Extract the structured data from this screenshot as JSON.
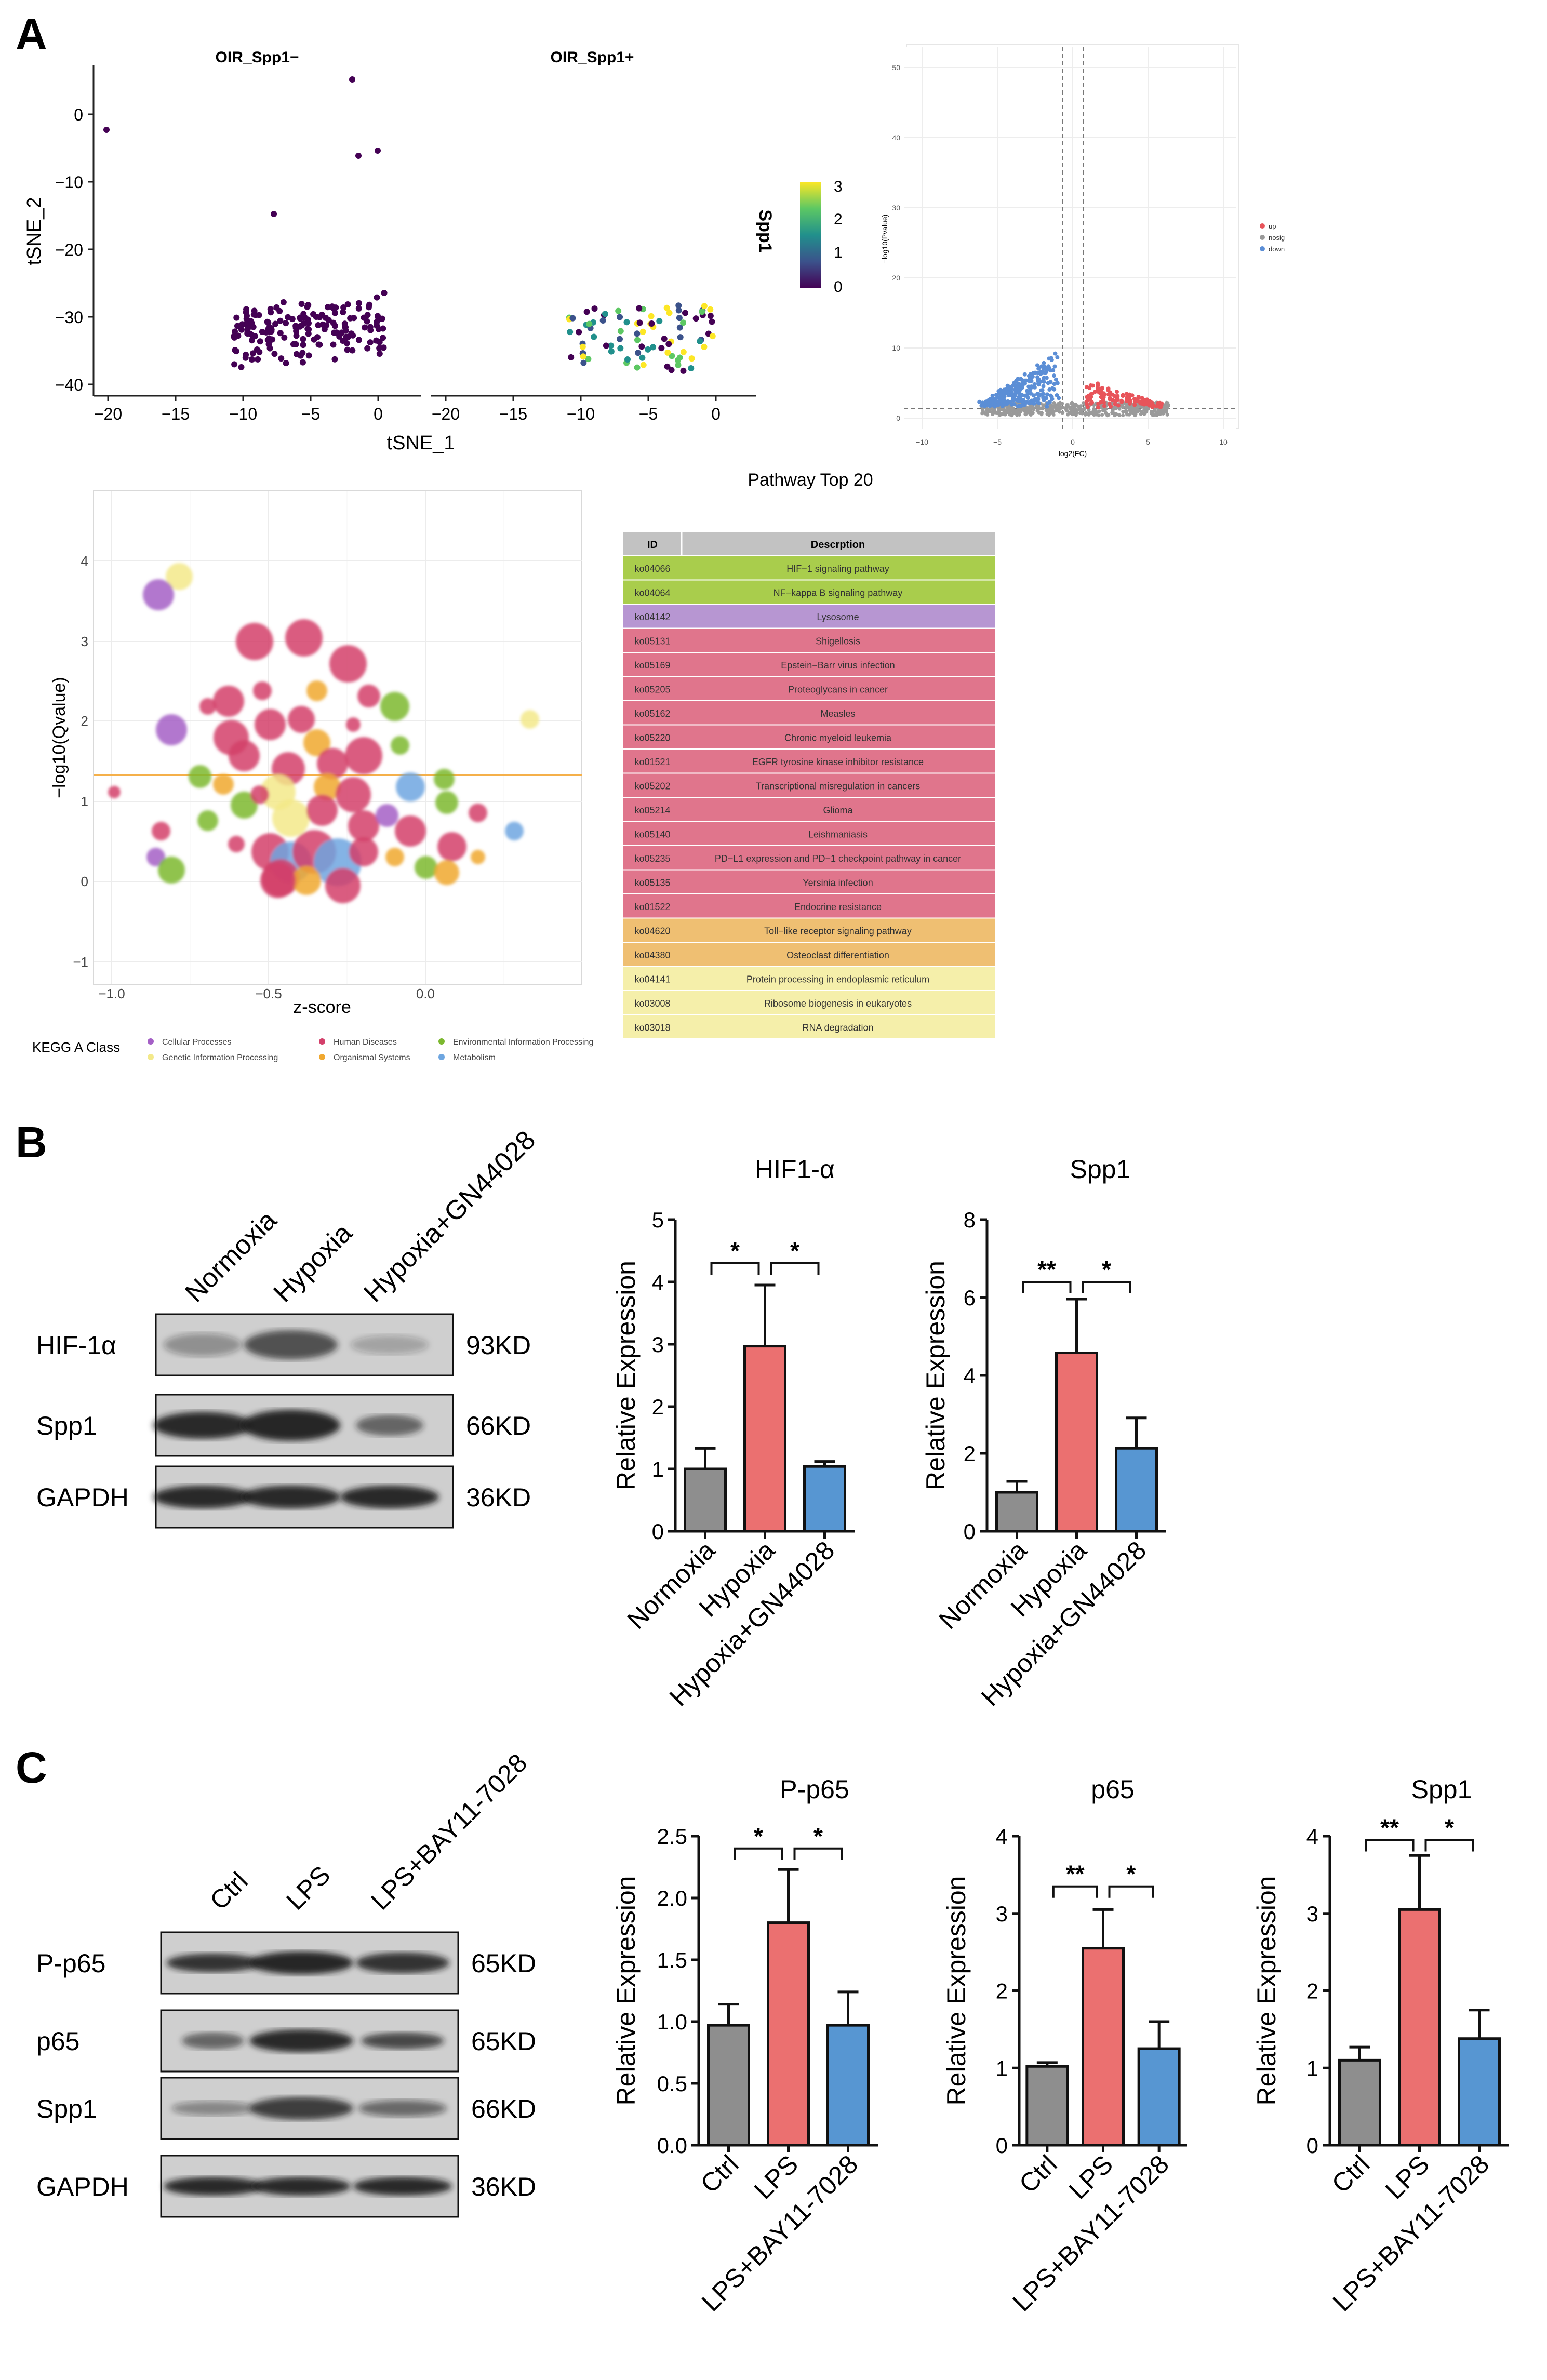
{
  "panels": {
    "A": {
      "label": "A",
      "tsne": {
        "titles": [
          "OIR_Spp1−",
          "OIR_Spp1+"
        ],
        "xlabel": "tSNE_1",
        "ylabel": "tSNE_2",
        "xticks": [
          "−20",
          "−15",
          "−10",
          "−5",
          "0"
        ],
        "yticks": [
          "0",
          "−10",
          "−20",
          "−30",
          "−40"
        ],
        "colorbar_title": "Spp1",
        "colorbar_ticks": [
          "3",
          "2",
          "1",
          "0"
        ],
        "colors": [
          "#440154",
          "#3b528b",
          "#21908c",
          "#5dc863",
          "#fde725"
        ]
      },
      "volcano": {
        "xlabel": "log2(FC)",
        "ylabel": "−log10(Pvalue)",
        "xticks": [
          "−10",
          "−5",
          "0",
          "5",
          "10"
        ],
        "yticks": [
          "0",
          "10",
          "20",
          "30",
          "40",
          "50"
        ],
        "legend": [
          {
            "label": "up",
            "color": "#e8545a"
          },
          {
            "label": "nosig",
            "color": "#9a9a9a"
          },
          {
            "label": "down",
            "color": "#5b8ed6"
          }
        ]
      },
      "bubble": {
        "xlabel": "z-score",
        "ylabel": "−log10(Qvalue)",
        "xticks": [
          "−1.0",
          "−0.5",
          "0.0"
        ],
        "yticks": [
          "4",
          "3",
          "2",
          "1",
          "0",
          "−1"
        ],
        "legend_title": "KEGG A Class",
        "legend": [
          {
            "label": "Cellular Processes",
            "color": "#a45fc6"
          },
          {
            "label": "Human Diseases",
            "color": "#d33f6a"
          },
          {
            "label": "Environmental Information Processing",
            "color": "#7cb82f"
          },
          {
            "label": "Genetic Information Processing",
            "color": "#f3e98a"
          },
          {
            "label": "Organismal Systems",
            "color": "#f0a830"
          },
          {
            "label": "Metabolism",
            "color": "#6ea6e0"
          }
        ]
      },
      "pathway_table": {
        "title": "Pathway Top 20",
        "headers": [
          "ID",
          "Descrption"
        ],
        "rows": [
          {
            "id": "ko04066",
            "desc": "HIF−1 signaling pathway",
            "color": "#a9cd4c"
          },
          {
            "id": "ko04064",
            "desc": "NF−kappa B signaling pathway",
            "color": "#a9cd4c"
          },
          {
            "id": "ko04142",
            "desc": "Lysosome",
            "color": "#b796d2"
          },
          {
            "id": "ko05131",
            "desc": "Shigellosis",
            "color": "#e0758c"
          },
          {
            "id": "ko05169",
            "desc": "Epstein−Barr virus infection",
            "color": "#e0758c"
          },
          {
            "id": "ko05205",
            "desc": "Proteoglycans in cancer",
            "color": "#e0758c"
          },
          {
            "id": "ko05162",
            "desc": "Measles",
            "color": "#e0758c"
          },
          {
            "id": "ko05220",
            "desc": "Chronic myeloid leukemia",
            "color": "#e0758c"
          },
          {
            "id": "ko01521",
            "desc": "EGFR tyrosine kinase inhibitor resistance",
            "color": "#e0758c"
          },
          {
            "id": "ko05202",
            "desc": "Transcriptional misregulation in cancers",
            "color": "#e0758c"
          },
          {
            "id": "ko05214",
            "desc": "Glioma",
            "color": "#e0758c"
          },
          {
            "id": "ko05140",
            "desc": "Leishmaniasis",
            "color": "#e0758c"
          },
          {
            "id": "ko05235",
            "desc": "PD−L1 expression and PD−1 checkpoint pathway in cancer",
            "color": "#e0758c"
          },
          {
            "id": "ko05135",
            "desc": "Yersinia infection",
            "color": "#e0758c"
          },
          {
            "id": "ko01522",
            "desc": "Endocrine resistance",
            "color": "#e0758c"
          },
          {
            "id": "ko04620",
            "desc": "Toll−like receptor signaling pathway",
            "color": "#efbf72"
          },
          {
            "id": "ko04380",
            "desc": "Osteoclast differentiation",
            "color": "#efbf72"
          },
          {
            "id": "ko04141",
            "desc": "Protein processing in endoplasmic reticulum",
            "color": "#f5efaa"
          },
          {
            "id": "ko03008",
            "desc": "Ribosome biogenesis in eukaryotes",
            "color": "#f5efaa"
          },
          {
            "id": "ko03018",
            "desc": "RNA degradation",
            "color": "#f5efaa"
          }
        ]
      }
    },
    "B": {
      "label": "B",
      "blot": {
        "lanes": [
          "Normoxia",
          "Hypoxia",
          "Hypoxia+GN44028"
        ],
        "rows": [
          {
            "protein": "HIF-1α",
            "size": "93KD"
          },
          {
            "protein": "Spp1",
            "size": "66KD"
          },
          {
            "protein": "GAPDH",
            "size": "36KD"
          }
        ]
      }
    },
    "C": {
      "label": "C",
      "blot": {
        "lanes": [
          "Ctrl",
          "LPS",
          "LPS+BAY11-7028"
        ],
        "rows": [
          {
            "protein": "P-p65",
            "size": "65KD"
          },
          {
            "protein": "p65",
            "size": "65KD"
          },
          {
            "protein": "Spp1",
            "size": "66KD"
          },
          {
            "protein": "GAPDH",
            "size": "36KD"
          }
        ]
      }
    }
  },
  "chart_data": [
    {
      "id": "B-HIF1a",
      "type": "bar",
      "title": "HIF1-α",
      "ylabel": "Relative Expression",
      "ylim": [
        0,
        5
      ],
      "yticks": [
        0,
        1,
        2,
        3,
        4,
        5
      ],
      "ytick_labels": [
        "0",
        "1",
        "2",
        "3",
        "4",
        "5"
      ],
      "categories": [
        "Normoxia",
        "Hypoxia",
        "Hypoxia+GN44028"
      ],
      "values": [
        1.0,
        2.97,
        1.04
      ],
      "errors": [
        0.33,
        0.98,
        0.08
      ],
      "colors": [
        "#8e8e8e",
        "#eb7070",
        "#5796d2"
      ],
      "significance": [
        {
          "from": 0,
          "to": 1,
          "label": "*",
          "y": 4.3
        },
        {
          "from": 1,
          "to": 2,
          "label": "*",
          "y": 4.3
        }
      ]
    },
    {
      "id": "B-Spp1",
      "type": "bar",
      "title": "Spp1",
      "ylabel": "Relative Expression",
      "ylim": [
        0,
        8
      ],
      "yticks": [
        0,
        2,
        4,
        6,
        8
      ],
      "ytick_labels": [
        "0",
        "2",
        "4",
        "6",
        "8"
      ],
      "categories": [
        "Normoxia",
        "Hypoxia",
        "Hypoxia+GN44028"
      ],
      "values": [
        1.0,
        4.58,
        2.13
      ],
      "errors": [
        0.28,
        1.38,
        0.78
      ],
      "colors": [
        "#8e8e8e",
        "#eb7070",
        "#5796d2"
      ],
      "significance": [
        {
          "from": 0,
          "to": 1,
          "label": "**",
          "y": 6.4
        },
        {
          "from": 1,
          "to": 2,
          "label": "*",
          "y": 6.4
        }
      ]
    },
    {
      "id": "C-Pp65",
      "type": "bar",
      "title": "P-p65",
      "ylabel": "Relative Expression",
      "ylim": [
        0,
        2.5
      ],
      "yticks": [
        0,
        0.5,
        1.0,
        1.5,
        2.0,
        2.5
      ],
      "ytick_labels": [
        "0.0",
        "0.5",
        "1.0",
        "1.5",
        "2.0",
        "2.5"
      ],
      "categories": [
        "Ctrl",
        "LPS",
        "LPS+BAY11-7028"
      ],
      "values": [
        0.97,
        1.8,
        0.97
      ],
      "errors": [
        0.17,
        0.43,
        0.27
      ],
      "colors": [
        "#8e8e8e",
        "#eb7070",
        "#5796d2"
      ],
      "significance": [
        {
          "from": 0,
          "to": 1,
          "label": "*",
          "y": 2.4
        },
        {
          "from": 1,
          "to": 2,
          "label": "*",
          "y": 2.4
        }
      ]
    },
    {
      "id": "C-p65",
      "type": "bar",
      "title": "p65",
      "ylabel": "Relative Expression",
      "ylim": [
        0,
        4
      ],
      "yticks": [
        0,
        1,
        2,
        3,
        4
      ],
      "ytick_labels": [
        "0",
        "1",
        "2",
        "3",
        "4"
      ],
      "categories": [
        "Ctrl",
        "LPS",
        "LPS+BAY11-7028"
      ],
      "values": [
        1.02,
        2.55,
        1.25
      ],
      "errors": [
        0.05,
        0.5,
        0.35
      ],
      "colors": [
        "#8e8e8e",
        "#eb7070",
        "#5796d2"
      ],
      "significance": [
        {
          "from": 0,
          "to": 1,
          "label": "**",
          "y": 3.35
        },
        {
          "from": 1,
          "to": 2,
          "label": "*",
          "y": 3.35
        }
      ]
    },
    {
      "id": "C-Spp1",
      "type": "bar",
      "title": "Spp1",
      "ylabel": "Relative Expression",
      "ylim": [
        0,
        4
      ],
      "yticks": [
        0,
        1,
        2,
        3,
        4
      ],
      "ytick_labels": [
        "0",
        "1",
        "2",
        "3",
        "4"
      ],
      "categories": [
        "Ctrl",
        "LPS",
        "LPS+BAY11-7028"
      ],
      "values": [
        1.1,
        3.05,
        1.38
      ],
      "errors": [
        0.17,
        0.7,
        0.37
      ],
      "colors": [
        "#8e8e8e",
        "#eb7070",
        "#5796d2"
      ],
      "significance": [
        {
          "from": 0,
          "to": 1,
          "label": "**",
          "y": 3.95
        },
        {
          "from": 1,
          "to": 2,
          "label": "*",
          "y": 3.95
        }
      ]
    }
  ]
}
